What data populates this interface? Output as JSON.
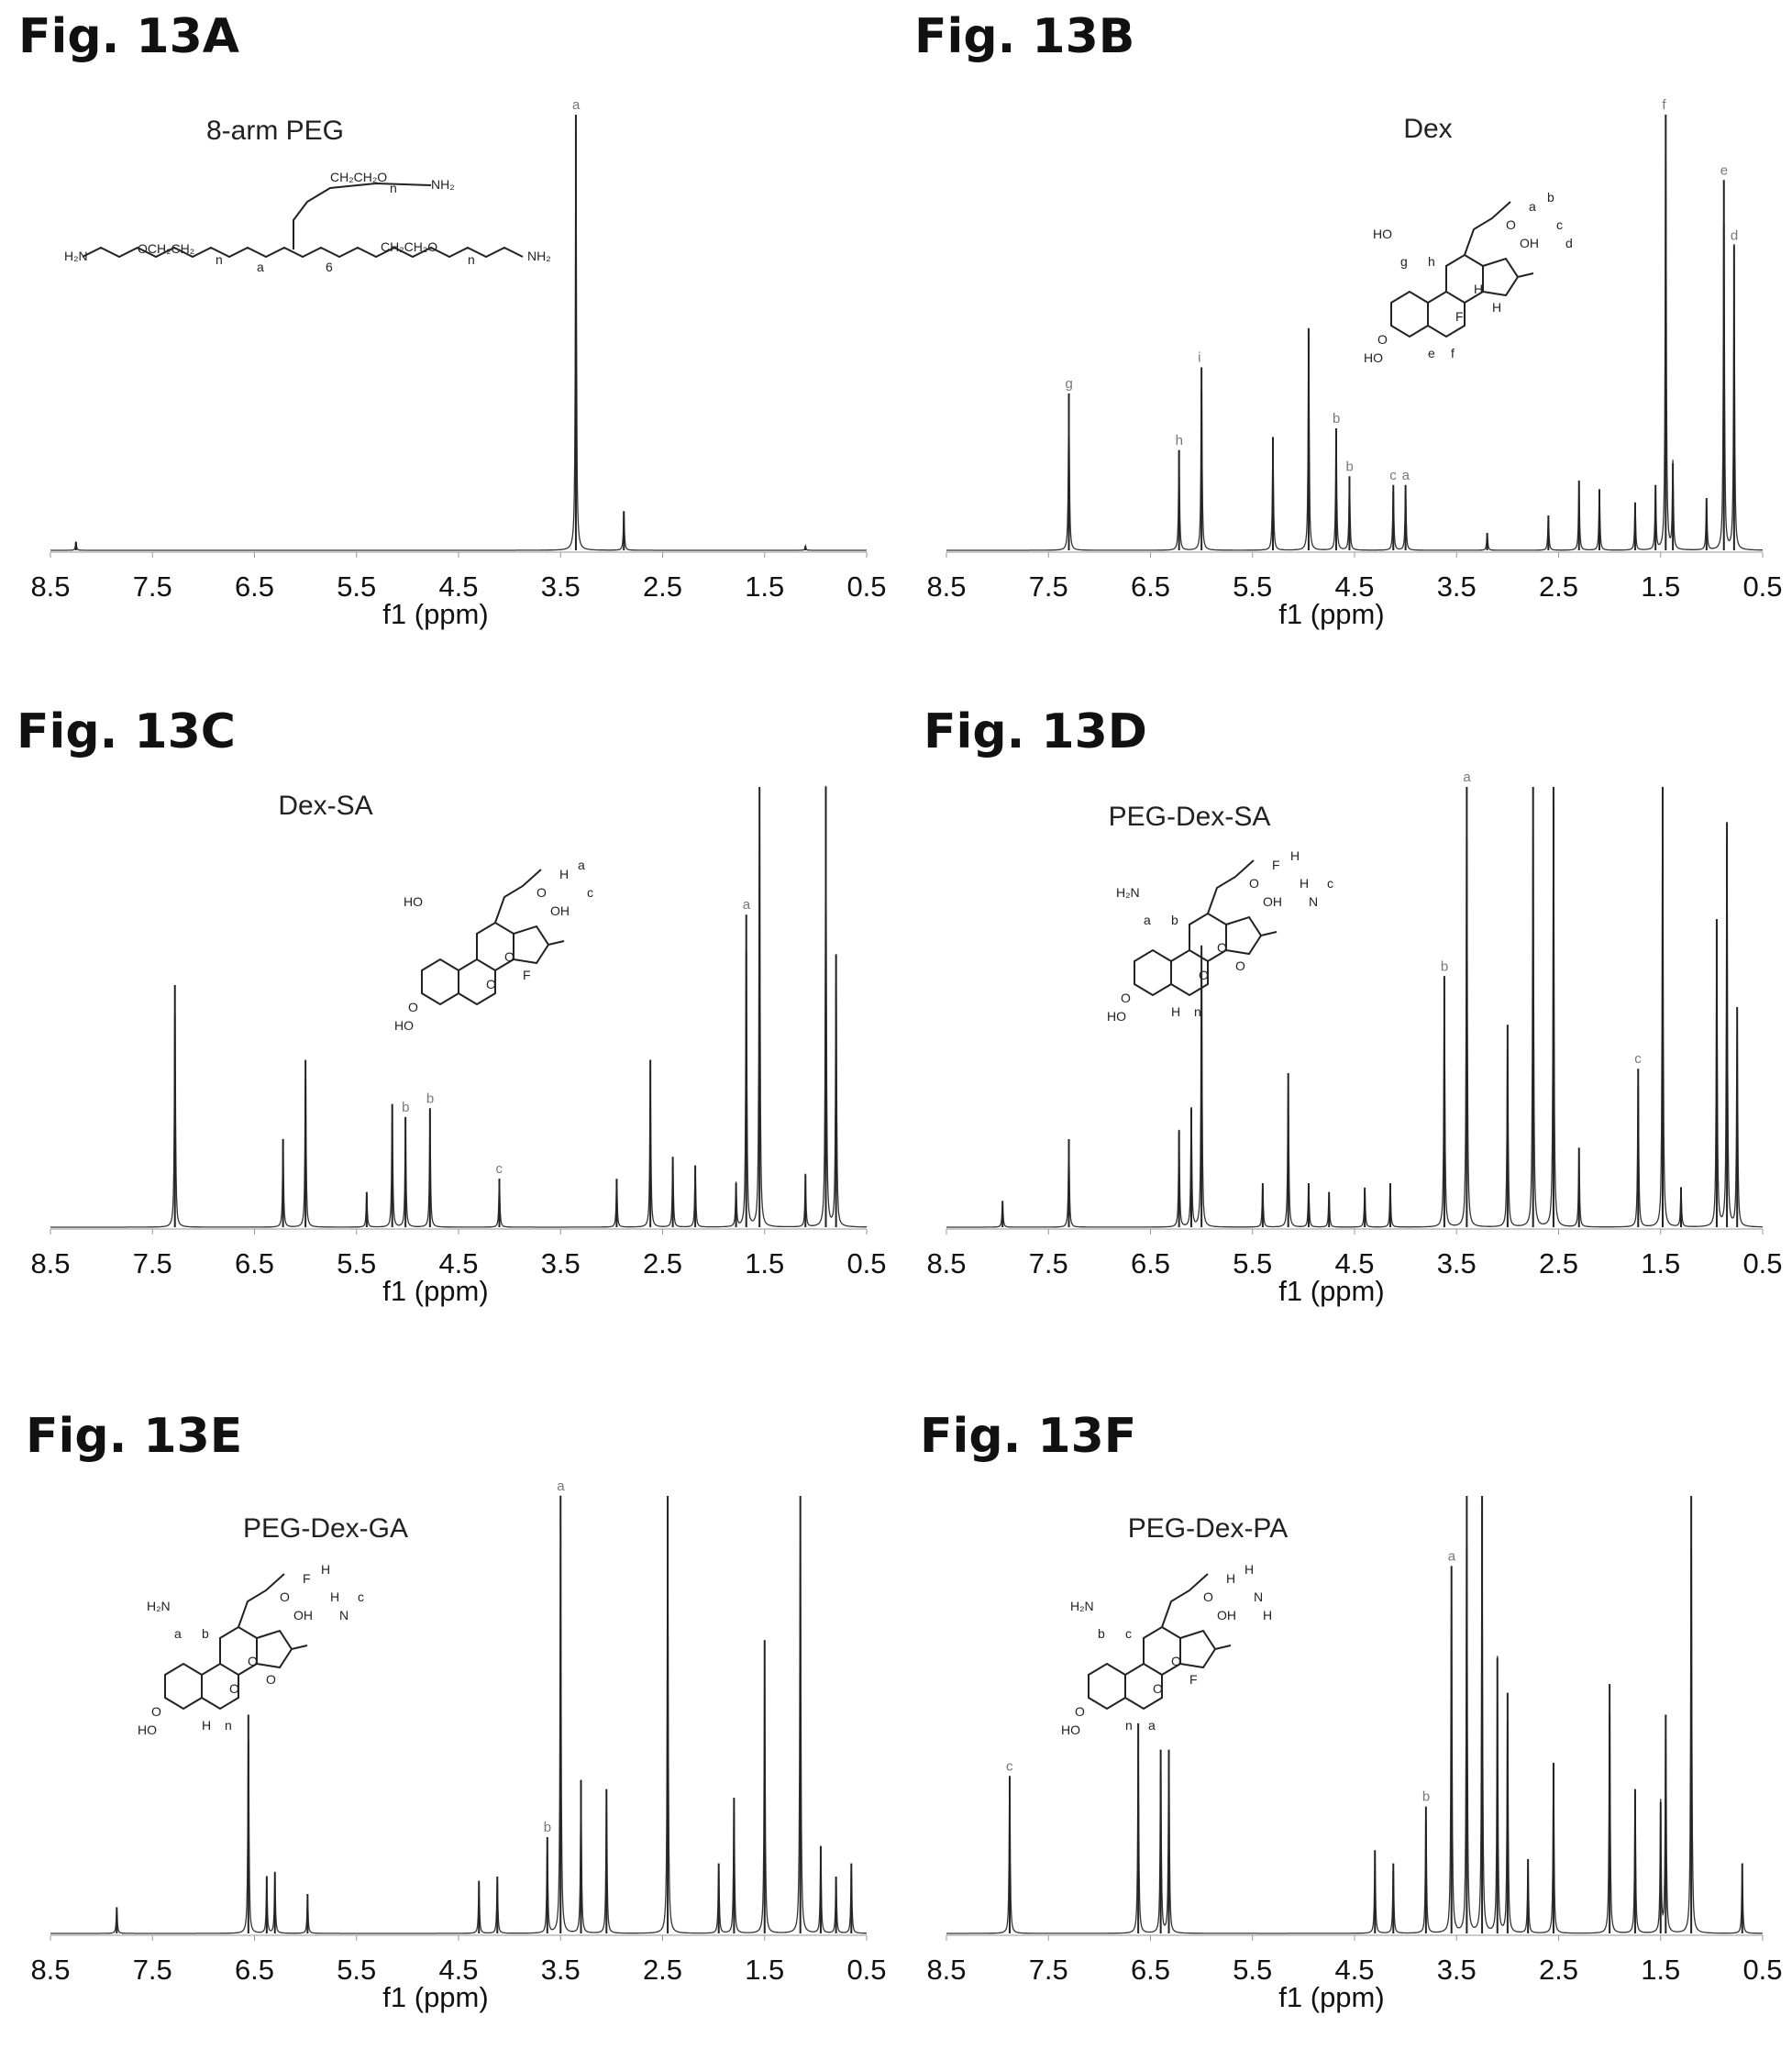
{
  "chart_data": [
    {
      "type": "line",
      "figure_label": "Fig. 13A",
      "title": "8-arm PEG",
      "xlabel": "f1 (ppm)",
      "xlim": [
        8.5,
        0.5
      ],
      "xticks": [
        "8.5",
        "7.5",
        "6.5",
        "5.5",
        "4.5",
        "3.5",
        "2.5",
        "1.5",
        "0.5"
      ],
      "structure_text": [
        "H₂N",
        "NH₂",
        "NH₂",
        "OCH₂CH₂",
        "CH₂CH₂O",
        "CH₂CH₂O",
        "n",
        "n",
        "n",
        "a",
        "6"
      ],
      "peaks": [
        {
          "ppm": 8.25,
          "height": 0.02
        },
        {
          "ppm": 3.35,
          "height": 1.0,
          "label": "a"
        },
        {
          "ppm": 2.88,
          "height": 0.09
        },
        {
          "ppm": 1.1,
          "height": 0.01
        }
      ]
    },
    {
      "type": "line",
      "figure_label": "Fig. 13B",
      "title": "Dex",
      "xlabel": "f1 (ppm)",
      "xlim": [
        8.5,
        0.5
      ],
      "xticks": [
        "8.5",
        "7.5",
        "6.5",
        "5.5",
        "4.5",
        "3.5",
        "2.5",
        "1.5",
        "0.5"
      ],
      "structure_text": [
        "HO",
        "HO",
        "OH",
        "O",
        "O",
        "F",
        "H",
        "H",
        "a",
        "b",
        "c",
        "d",
        "e",
        "f",
        "g",
        "h"
      ],
      "peaks": [
        {
          "ppm": 7.3,
          "height": 0.36,
          "label": "g"
        },
        {
          "ppm": 6.22,
          "height": 0.23,
          "label": "h"
        },
        {
          "ppm": 6.0,
          "height": 0.42,
          "label": "i"
        },
        {
          "ppm": 5.3,
          "height": 0.26
        },
        {
          "ppm": 4.95,
          "height": 0.51
        },
        {
          "ppm": 4.68,
          "height": 0.28,
          "label": "b"
        },
        {
          "ppm": 4.55,
          "height": 0.17,
          "label": "b"
        },
        {
          "ppm": 4.12,
          "height": 0.15,
          "label": "c"
        },
        {
          "ppm": 4.0,
          "height": 0.15,
          "label": "a"
        },
        {
          "ppm": 3.2,
          "height": 0.04
        },
        {
          "ppm": 2.6,
          "height": 0.08
        },
        {
          "ppm": 2.3,
          "height": 0.16
        },
        {
          "ppm": 2.1,
          "height": 0.14
        },
        {
          "ppm": 1.75,
          "height": 0.11
        },
        {
          "ppm": 1.55,
          "height": 0.15
        },
        {
          "ppm": 1.45,
          "height": 1.0,
          "label": "f"
        },
        {
          "ppm": 1.38,
          "height": 0.2
        },
        {
          "ppm": 1.05,
          "height": 0.12
        },
        {
          "ppm": 0.88,
          "height": 0.85,
          "label": "e"
        },
        {
          "ppm": 0.78,
          "height": 0.7,
          "label": "d"
        }
      ]
    },
    {
      "type": "line",
      "figure_label": "Fig. 13C",
      "title": "Dex-SA",
      "xlabel": "f1 (ppm)",
      "xlim": [
        8.5,
        0.5
      ],
      "xticks": [
        "8.5",
        "7.5",
        "6.5",
        "5.5",
        "4.5",
        "3.5",
        "2.5",
        "1.5",
        "0.5"
      ],
      "structure_text": [
        "HO",
        "HO",
        "OH",
        "O",
        "O",
        "O",
        "O",
        "F",
        "H",
        "a",
        "c"
      ],
      "peaks": [
        {
          "ppm": 7.28,
          "height": 0.55
        },
        {
          "ppm": 6.22,
          "height": 0.2
        },
        {
          "ppm": 6.0,
          "height": 0.38
        },
        {
          "ppm": 5.4,
          "height": 0.08
        },
        {
          "ppm": 5.15,
          "height": 0.28
        },
        {
          "ppm": 5.02,
          "height": 0.25,
          "label": "b"
        },
        {
          "ppm": 4.78,
          "height": 0.27,
          "label": "b"
        },
        {
          "ppm": 4.1,
          "height": 0.11,
          "label": "c"
        },
        {
          "ppm": 2.95,
          "height": 0.11
        },
        {
          "ppm": 2.62,
          "height": 0.38
        },
        {
          "ppm": 2.4,
          "height": 0.16
        },
        {
          "ppm": 2.18,
          "height": 0.14
        },
        {
          "ppm": 1.78,
          "height": 0.1
        },
        {
          "ppm": 1.68,
          "height": 0.71,
          "label": "a"
        },
        {
          "ppm": 1.55,
          "height": 1.0
        },
        {
          "ppm": 1.1,
          "height": 0.12
        },
        {
          "ppm": 0.9,
          "height": 1.0
        },
        {
          "ppm": 0.8,
          "height": 0.62
        }
      ]
    },
    {
      "type": "line",
      "figure_label": "Fig. 13D",
      "title": "PEG-Dex-SA",
      "xlabel": "f1 (ppm)",
      "xlim": [
        8.5,
        0.5
      ],
      "xticks": [
        "8.5",
        "7.5",
        "6.5",
        "5.5",
        "4.5",
        "3.5",
        "2.5",
        "1.5",
        "0.5"
      ],
      "structure_text": [
        "H₂N",
        "HO",
        "OH",
        "O",
        "O",
        "O",
        "O",
        "O",
        "F",
        "H",
        "H",
        "N",
        "H",
        "n",
        "a",
        "b",
        "c"
      ],
      "peaks": [
        {
          "ppm": 7.95,
          "height": 0.06
        },
        {
          "ppm": 7.3,
          "height": 0.2
        },
        {
          "ppm": 6.22,
          "height": 0.22
        },
        {
          "ppm": 6.1,
          "height": 0.27
        },
        {
          "ppm": 6.0,
          "height": 0.64
        },
        {
          "ppm": 5.4,
          "height": 0.1
        },
        {
          "ppm": 5.15,
          "height": 0.35
        },
        {
          "ppm": 4.95,
          "height": 0.1
        },
        {
          "ppm": 4.75,
          "height": 0.08
        },
        {
          "ppm": 4.4,
          "height": 0.09
        },
        {
          "ppm": 4.15,
          "height": 0.1
        },
        {
          "ppm": 3.62,
          "height": 0.57,
          "label": "b"
        },
        {
          "ppm": 3.4,
          "height": 1.0,
          "label": "a"
        },
        {
          "ppm": 3.0,
          "height": 0.46
        },
        {
          "ppm": 2.75,
          "height": 1.0
        },
        {
          "ppm": 2.55,
          "height": 1.0
        },
        {
          "ppm": 2.3,
          "height": 0.18
        },
        {
          "ppm": 1.72,
          "height": 0.36,
          "label": "c"
        },
        {
          "ppm": 1.48,
          "height": 1.0
        },
        {
          "ppm": 1.3,
          "height": 0.09
        },
        {
          "ppm": 0.95,
          "height": 0.7
        },
        {
          "ppm": 0.85,
          "height": 0.92
        },
        {
          "ppm": 0.75,
          "height": 0.5
        }
      ]
    },
    {
      "type": "line",
      "figure_label": "Fig. 13E",
      "title": "PEG-Dex-GA",
      "xlabel": "f1 (ppm)",
      "xlim": [
        8.5,
        0.5
      ],
      "xticks": [
        "8.5",
        "7.5",
        "6.5",
        "5.5",
        "4.5",
        "3.5",
        "2.5",
        "1.5",
        "0.5"
      ],
      "structure_text": [
        "H₂N",
        "HO",
        "OH",
        "O",
        "O",
        "O",
        "O",
        "O",
        "F",
        "H",
        "H",
        "N",
        "H",
        "n",
        "a",
        "b",
        "c"
      ],
      "peaks": [
        {
          "ppm": 7.85,
          "height": 0.06
        },
        {
          "ppm": 6.56,
          "height": 0.5
        },
        {
          "ppm": 6.38,
          "height": 0.13
        },
        {
          "ppm": 6.3,
          "height": 0.14
        },
        {
          "ppm": 5.98,
          "height": 0.09
        },
        {
          "ppm": 4.3,
          "height": 0.12
        },
        {
          "ppm": 4.12,
          "height": 0.13
        },
        {
          "ppm": 3.63,
          "height": 0.22,
          "label": "b"
        },
        {
          "ppm": 3.5,
          "height": 1.0,
          "label": "a"
        },
        {
          "ppm": 3.3,
          "height": 0.35
        },
        {
          "ppm": 3.05,
          "height": 0.33
        },
        {
          "ppm": 2.45,
          "height": 1.0
        },
        {
          "ppm": 1.95,
          "height": 0.16
        },
        {
          "ppm": 1.8,
          "height": 0.31
        },
        {
          "ppm": 1.5,
          "height": 0.67
        },
        {
          "ppm": 1.15,
          "height": 1.0
        },
        {
          "ppm": 0.95,
          "height": 0.2
        },
        {
          "ppm": 0.8,
          "height": 0.13
        },
        {
          "ppm": 0.65,
          "height": 0.16
        }
      ]
    },
    {
      "type": "line",
      "figure_label": "Fig. 13F",
      "title": "PEG-Dex-PA",
      "xlabel": "f1 (ppm)",
      "xlim": [
        8.5,
        0.5
      ],
      "xticks": [
        "8.5",
        "7.5",
        "6.5",
        "5.5",
        "4.5",
        "3.5",
        "2.5",
        "1.5",
        "0.5"
      ],
      "structure_text": [
        "H₂N",
        "HO",
        "OH",
        "O",
        "O",
        "O",
        "O",
        "F",
        "H",
        "H",
        "N",
        "H",
        "n",
        "a",
        "b",
        "c"
      ],
      "peaks": [
        {
          "ppm": 7.88,
          "height": 0.36,
          "label": "c"
        },
        {
          "ppm": 6.62,
          "height": 0.48
        },
        {
          "ppm": 6.4,
          "height": 0.42
        },
        {
          "ppm": 6.32,
          "height": 0.42
        },
        {
          "ppm": 4.3,
          "height": 0.19
        },
        {
          "ppm": 4.12,
          "height": 0.16
        },
        {
          "ppm": 3.8,
          "height": 0.29,
          "label": "b"
        },
        {
          "ppm": 3.55,
          "height": 0.84,
          "label": "a"
        },
        {
          "ppm": 3.4,
          "height": 1.0
        },
        {
          "ppm": 3.25,
          "height": 1.0
        },
        {
          "ppm": 3.1,
          "height": 0.63
        },
        {
          "ppm": 3.0,
          "height": 0.55
        },
        {
          "ppm": 2.8,
          "height": 0.17
        },
        {
          "ppm": 2.55,
          "height": 0.39
        },
        {
          "ppm": 2.0,
          "height": 0.57
        },
        {
          "ppm": 1.75,
          "height": 0.33
        },
        {
          "ppm": 1.5,
          "height": 0.3
        },
        {
          "ppm": 1.45,
          "height": 0.5
        },
        {
          "ppm": 1.2,
          "height": 1.0
        },
        {
          "ppm": 0.7,
          "height": 0.16
        }
      ]
    }
  ]
}
